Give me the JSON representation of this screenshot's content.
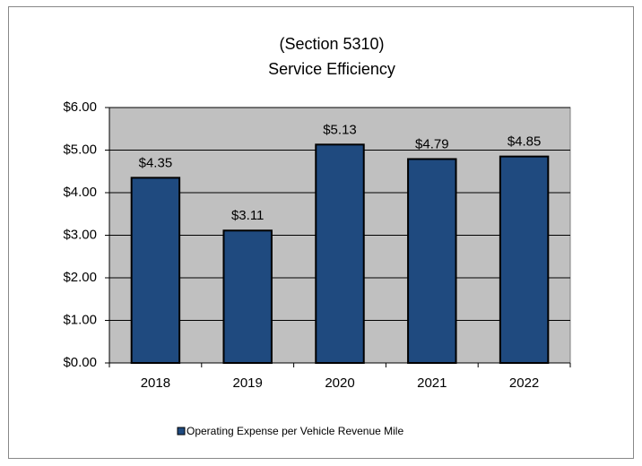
{
  "chart_data": {
    "type": "bar",
    "title": [
      "(Section 5310)",
      "Service Efficiency"
    ],
    "categories": [
      "2018",
      "2019",
      "2020",
      "2021",
      "2022"
    ],
    "series": [
      {
        "name": "Operating Expense per Vehicle Revenue Mile",
        "color": "#1f4a7f",
        "values": [
          4.35,
          3.11,
          5.13,
          4.79,
          4.85
        ],
        "value_labels": [
          "$4.35",
          "$3.11",
          "$5.13",
          "$4.79",
          "$4.85"
        ]
      }
    ],
    "ylim": [
      0,
      6
    ],
    "yticks": [
      {
        "value": 0,
        "label": "$0.00"
      },
      {
        "value": 1,
        "label": "$1.00"
      },
      {
        "value": 2,
        "label": "$2.00"
      },
      {
        "value": 3,
        "label": "$3.00"
      },
      {
        "value": 4,
        "label": "$4.00"
      },
      {
        "value": 5,
        "label": "$5.00"
      },
      {
        "value": 6,
        "label": "$6.00"
      }
    ],
    "grid": true,
    "legend": "bottom"
  }
}
